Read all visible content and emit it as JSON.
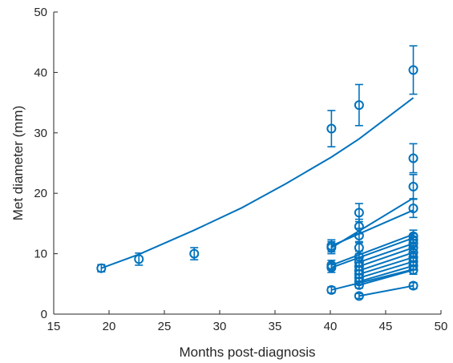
{
  "chart_data": {
    "type": "scatter",
    "title": "",
    "xlabel": "Months post-diagnosis",
    "ylabel": "Met diameter (mm)",
    "xlim": [
      15,
      50
    ],
    "ylim": [
      0,
      50
    ],
    "xticks": [
      "15",
      "20",
      "25",
      "30",
      "35",
      "40",
      "45",
      "50"
    ],
    "yticks": [
      "0",
      "10",
      "20",
      "30",
      "40",
      "50"
    ],
    "grid": false,
    "color": "#0072BD",
    "series": [
      {
        "x": [
          19.3,
          22.7,
          27.7,
          40.1,
          42.6,
          47.5
        ],
        "y": [
          7.6,
          9.1,
          10.0,
          30.7,
          34.6,
          40.4
        ],
        "err": [
          0.6,
          1.0,
          1.0,
          3.0,
          3.4,
          4.0
        ]
      },
      {
        "x": [
          40.1,
          42.6,
          47.5
        ],
        "y": [
          11.3,
          14.5,
          25.8
        ],
        "err": [
          1.0,
          1.2,
          2.4
        ]
      },
      {
        "x": [
          40.1,
          42.6,
          47.5
        ],
        "y": [
          11.0,
          16.8,
          21.1
        ],
        "err": [
          1.0,
          1.5,
          2.0
        ]
      },
      {
        "x": [
          40.1,
          42.6,
          47.5
        ],
        "y": [
          8.1,
          13.0,
          17.5
        ],
        "err": [
          0.8,
          1.2,
          1.5
        ]
      },
      {
        "x": [
          40.1,
          42.6,
          47.5
        ],
        "y": [
          7.7,
          11.0,
          12.9
        ],
        "err": [
          0.8,
          1.0,
          1.0
        ]
      },
      {
        "x": [
          40.1,
          42.6,
          47.5
        ],
        "y": [
          4.0,
          9.5,
          12.3
        ],
        "err": [
          0.5,
          0.9,
          1.0
        ]
      },
      {
        "x": [
          42.6,
          47.5
        ],
        "y": [
          8.6,
          11.7
        ],
        "err": [
          0.8,
          1.0
        ]
      },
      {
        "x": [
          42.6,
          47.5
        ],
        "y": [
          7.9,
          11.0
        ],
        "err": [
          0.7,
          0.9
        ]
      },
      {
        "x": [
          42.6,
          47.5
        ],
        "y": [
          7.2,
          10.2
        ],
        "err": [
          0.7,
          0.9
        ]
      },
      {
        "x": [
          42.6,
          47.5
        ],
        "y": [
          6.6,
          9.4
        ],
        "err": [
          0.6,
          0.8
        ]
      },
      {
        "x": [
          42.6,
          47.5
        ],
        "y": [
          6.0,
          8.7
        ],
        "err": [
          0.6,
          0.8
        ]
      },
      {
        "x": [
          42.6,
          47.5
        ],
        "y": [
          5.4,
          8.0
        ],
        "err": [
          0.5,
          0.7
        ]
      },
      {
        "x": [
          42.6,
          47.5
        ],
        "y": [
          4.8,
          7.3
        ],
        "err": [
          0.5,
          0.7
        ]
      },
      {
        "x": [
          42.6,
          47.5
        ],
        "y": [
          3.0,
          4.7
        ],
        "err": [
          0.4,
          0.5
        ]
      }
    ],
    "fits": [
      {
        "x": [
          19.3,
          22.7,
          27.7,
          32.0,
          36.0,
          40.1,
          42.6,
          47.5
        ],
        "y": [
          7.6,
          9.9,
          13.9,
          17.6,
          21.6,
          26.0,
          29.0,
          35.8
        ]
      },
      {
        "x": [
          40.1,
          47.5
        ],
        "y": [
          11.3,
          17.2
        ]
      },
      {
        "x": [
          40.1,
          47.5
        ],
        "y": [
          11.0,
          19.2
        ]
      },
      {
        "x": [
          40.1,
          47.5
        ],
        "y": [
          7.7,
          12.6
        ]
      },
      {
        "x": [
          40.1,
          47.5
        ],
        "y": [
          4.0,
          7.4
        ]
      },
      {
        "x": [
          40.1,
          47.5
        ],
        "y": [
          8.1,
          13.2
        ]
      },
      {
        "x": [
          42.6,
          47.5
        ],
        "y": [
          8.6,
          11.7
        ]
      },
      {
        "x": [
          42.6,
          47.5
        ],
        "y": [
          7.9,
          11.0
        ]
      },
      {
        "x": [
          42.6,
          47.5
        ],
        "y": [
          7.2,
          10.2
        ]
      },
      {
        "x": [
          42.6,
          47.5
        ],
        "y": [
          6.6,
          9.4
        ]
      },
      {
        "x": [
          42.6,
          47.5
        ],
        "y": [
          6.0,
          8.7
        ]
      },
      {
        "x": [
          42.6,
          47.5
        ],
        "y": [
          5.4,
          8.0
        ]
      },
      {
        "x": [
          42.6,
          47.5
        ],
        "y": [
          4.8,
          7.3
        ]
      },
      {
        "x": [
          42.6,
          47.5
        ],
        "y": [
          3.0,
          4.7
        ]
      }
    ]
  }
}
